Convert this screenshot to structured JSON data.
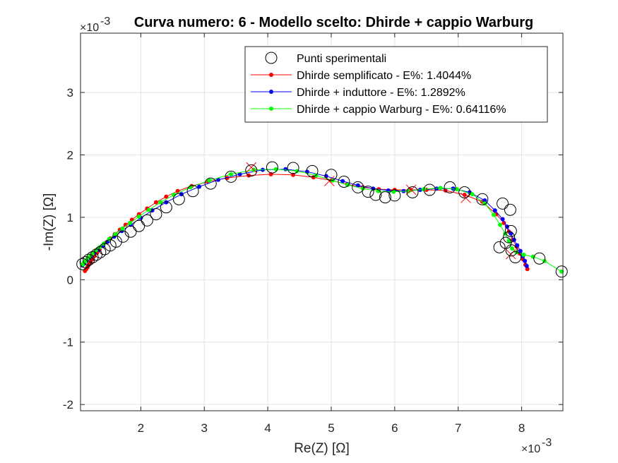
{
  "chart_data": {
    "type": "scatter",
    "title": "Curva numero: 6 - Modello scelto: Dhirde + cappio Warburg",
    "xlabel": "Re(Z) [Ω]",
    "ylabel": "-Im(Z) [Ω]",
    "x_multiplier": "×10",
    "x_multiplier_exp": "-3",
    "y_multiplier": "×10",
    "y_multiplier_exp": "-3",
    "xlim": [
      1.05,
      8.65
    ],
    "ylim": [
      -2.1,
      3.95
    ],
    "xticks": [
      2,
      3,
      4,
      5,
      6,
      7,
      8
    ],
    "yticks": [
      -2,
      -1,
      0,
      1,
      2,
      3
    ],
    "grid": true,
    "legend_position": "top-right",
    "series": [
      {
        "name": "Punti sperimentali",
        "kind": "open-circles",
        "color": "#000000",
        "x": [
          1.08,
          1.13,
          1.18,
          1.24,
          1.3,
          1.36,
          1.43,
          1.52,
          1.61,
          1.72,
          1.84,
          1.97,
          2.1,
          2.24,
          2.4,
          2.6,
          2.82,
          3.1,
          3.42,
          3.74,
          4.07,
          4.4,
          4.7,
          5.0,
          5.2,
          5.42,
          5.58,
          5.7,
          5.85,
          6.0,
          6.28,
          6.55,
          6.87,
          7.1,
          7.38,
          7.7,
          7.82,
          7.83,
          7.8,
          7.75,
          7.65,
          7.84,
          7.9,
          8.28,
          8.63
        ],
        "y": [
          0.25,
          0.28,
          0.32,
          0.36,
          0.4,
          0.44,
          0.49,
          0.55,
          0.61,
          0.69,
          0.77,
          0.86,
          0.95,
          1.05,
          1.16,
          1.29,
          1.42,
          1.54,
          1.65,
          1.75,
          1.8,
          1.79,
          1.74,
          1.68,
          1.57,
          1.48,
          1.41,
          1.36,
          1.32,
          1.35,
          1.4,
          1.44,
          1.48,
          1.4,
          1.29,
          1.22,
          1.12,
          0.78,
          0.68,
          0.59,
          0.52,
          0.47,
          0.36,
          0.34,
          0.13
        ]
      },
      {
        "name": "Dhirde semplificato - E%: 1.4044%",
        "kind": "line-dots",
        "color": "#ff0000",
        "x": [
          1.12,
          1.14,
          1.16,
          1.18,
          1.21,
          1.24,
          1.27,
          1.31,
          1.35,
          1.4,
          1.46,
          1.52,
          1.59,
          1.67,
          1.76,
          1.86,
          1.97,
          2.1,
          2.24,
          2.4,
          2.58,
          2.8,
          3.06,
          3.36,
          3.7,
          4.05,
          4.4,
          4.72,
          5.0,
          5.25,
          5.5,
          5.75,
          6.0,
          6.25,
          6.5,
          6.8,
          7.1,
          7.38,
          7.6,
          7.72,
          7.8,
          7.86,
          7.92,
          7.97,
          8.02,
          8.06,
          8.09
        ],
        "y": [
          0.14,
          0.17,
          0.2,
          0.24,
          0.28,
          0.33,
          0.38,
          0.43,
          0.48,
          0.54,
          0.6,
          0.66,
          0.73,
          0.8,
          0.88,
          0.96,
          1.05,
          1.14,
          1.24,
          1.33,
          1.42,
          1.5,
          1.57,
          1.63,
          1.67,
          1.69,
          1.68,
          1.64,
          1.59,
          1.53,
          1.48,
          1.45,
          1.44,
          1.44,
          1.44,
          1.43,
          1.36,
          1.25,
          1.05,
          0.91,
          0.77,
          0.64,
          0.53,
          0.42,
          0.33,
          0.24,
          0.17
        ]
      },
      {
        "name": "Dhirde + induttore - E%: 1.2892%",
        "kind": "line-dots",
        "color": "#0000ff",
        "x": [
          1.08,
          1.11,
          1.14,
          1.18,
          1.22,
          1.27,
          1.33,
          1.4,
          1.48,
          1.58,
          1.7,
          1.84,
          2.0,
          2.18,
          2.4,
          2.64,
          2.92,
          3.22,
          3.56,
          3.92,
          4.28,
          4.62,
          4.92,
          5.18,
          5.42,
          5.66,
          5.9,
          6.14,
          6.4,
          6.66,
          6.92,
          7.18,
          7.42,
          7.58,
          7.7,
          7.77,
          7.83,
          7.88,
          7.93,
          7.98,
          8.02,
          8.05,
          8.08
        ],
        "y": [
          0.23,
          0.26,
          0.3,
          0.34,
          0.38,
          0.43,
          0.48,
          0.54,
          0.61,
          0.69,
          0.78,
          0.88,
          0.99,
          1.11,
          1.24,
          1.37,
          1.49,
          1.6,
          1.69,
          1.76,
          1.77,
          1.73,
          1.66,
          1.58,
          1.51,
          1.46,
          1.43,
          1.42,
          1.44,
          1.46,
          1.46,
          1.4,
          1.27,
          1.11,
          0.97,
          0.85,
          0.74,
          0.64,
          0.55,
          0.46,
          0.38,
          0.3,
          0.22
        ]
      },
      {
        "name": "Dhirde + cappio Warburg - E%: 0.64116%",
        "kind": "line-dots",
        "color": "#00ff00",
        "x": [
          1.08,
          1.1,
          1.13,
          1.16,
          1.2,
          1.24,
          1.29,
          1.35,
          1.42,
          1.5,
          1.6,
          1.71,
          1.83,
          1.97,
          2.13,
          2.31,
          2.52,
          2.78,
          3.08,
          3.42,
          3.78,
          4.13,
          4.46,
          4.76,
          5.02,
          5.26,
          5.5,
          5.74,
          5.98,
          6.22,
          6.46,
          6.72,
          6.98,
          7.22,
          7.42,
          7.56,
          7.66,
          7.74,
          7.8,
          7.85,
          7.92,
          8.03,
          8.18,
          8.36,
          8.63
        ],
        "y": [
          0.24,
          0.27,
          0.3,
          0.34,
          0.38,
          0.42,
          0.47,
          0.52,
          0.58,
          0.65,
          0.73,
          0.82,
          0.91,
          1.01,
          1.12,
          1.24,
          1.36,
          1.48,
          1.59,
          1.69,
          1.76,
          1.77,
          1.74,
          1.67,
          1.59,
          1.52,
          1.46,
          1.42,
          1.41,
          1.42,
          1.45,
          1.47,
          1.45,
          1.37,
          1.22,
          1.04,
          0.88,
          0.74,
          0.62,
          0.5,
          0.44,
          0.4,
          0.37,
          0.3,
          0.13
        ]
      },
      {
        "name": "",
        "kind": "red-crosses",
        "color": "#ff0000",
        "x": [
          3.74,
          4.97,
          6.26,
          7.12,
          7.83
        ],
        "y": [
          1.8,
          1.58,
          1.44,
          1.31,
          0.41
        ]
      }
    ]
  }
}
